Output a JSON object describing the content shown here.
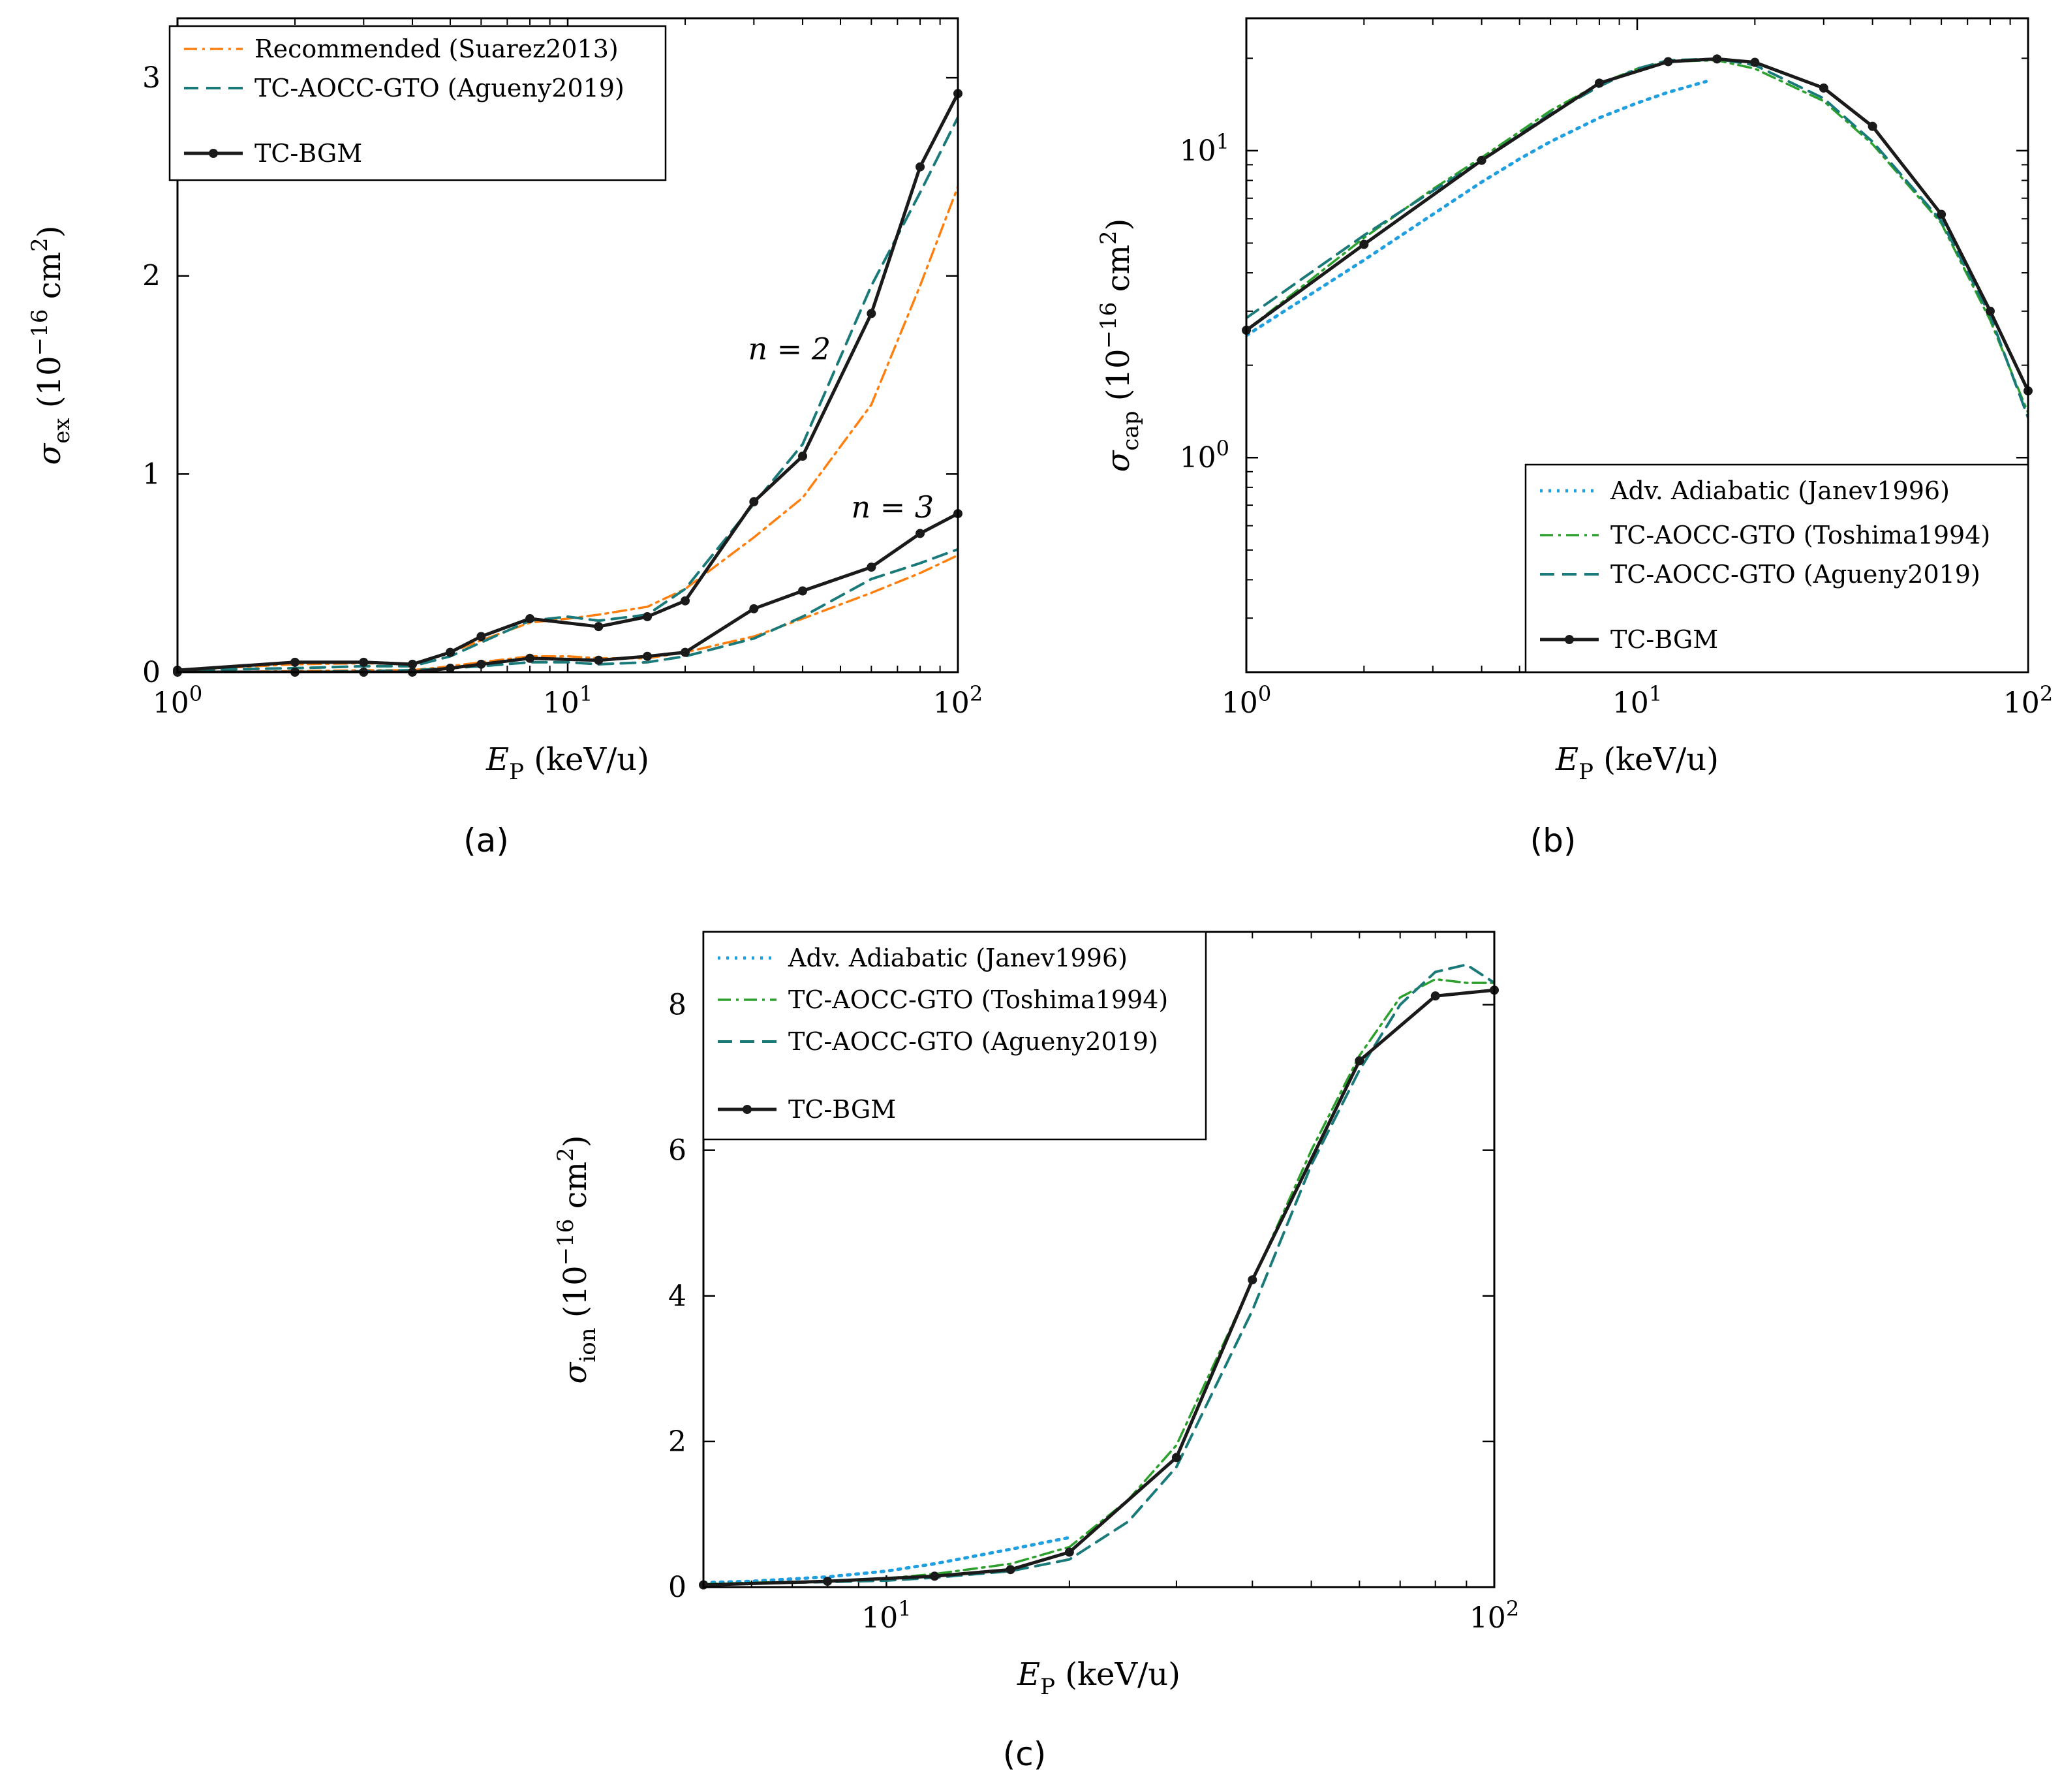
{
  "chart_data": [
    {
      "id": "a",
      "panel_label": "(a)",
      "type": "line",
      "xscale": "log",
      "yscale": "linear",
      "xlim": [
        1,
        100
      ],
      "ylim": [
        0,
        3.3
      ],
      "xlabel": "E_P (keV/u)",
      "ylabel": "σ_ex (10^−16 cm^2)",
      "xticks": [
        {
          "value": 1,
          "label": "10^0"
        },
        {
          "value": 10,
          "label": "10^1"
        },
        {
          "value": 100,
          "label": "10^2"
        }
      ],
      "yticks": [
        {
          "value": 0,
          "label": "0"
        },
        {
          "value": 1,
          "label": "1"
        },
        {
          "value": 2,
          "label": "2"
        },
        {
          "value": 3,
          "label": "3"
        }
      ],
      "legend_position": "top-left",
      "legend": [
        {
          "label": "Recommended (Suarez2013)",
          "style": "dashdot",
          "color": "#ff7f0e"
        },
        {
          "label": "TC-AOCC-GTO (Agueny2019)",
          "style": "dashed",
          "color": "#1a7a7a"
        },
        {
          "label": "TC-BGM",
          "style": "solid-marker",
          "color": "#1a1a1a"
        }
      ],
      "annotations": [
        {
          "text": "n = 2",
          "x": 37,
          "y": 1.58
        },
        {
          "text": "n = 3",
          "x": 68,
          "y": 0.78
        }
      ],
      "series": [
        {
          "name": "Recommended (Suarez2013) n=2",
          "style": "dashdot",
          "color": "#ff7f0e",
          "x": [
            1,
            2,
            3,
            4,
            5,
            6,
            8,
            10,
            12,
            16,
            20,
            30,
            40,
            60,
            80,
            100
          ],
          "y": [
            0.01,
            0.04,
            0.045,
            0.04,
            0.1,
            0.16,
            0.25,
            0.27,
            0.29,
            0.33,
            0.42,
            0.68,
            0.88,
            1.35,
            1.95,
            2.45
          ]
        },
        {
          "name": "Recommended (Suarez2013) n=3",
          "style": "dashdot",
          "color": "#ff7f0e",
          "x": [
            1,
            2,
            3,
            4,
            5,
            6,
            8,
            10,
            12,
            16,
            20,
            30,
            40,
            60,
            80,
            100
          ],
          "y": [
            0.0,
            0.005,
            0.01,
            0.01,
            0.03,
            0.05,
            0.08,
            0.08,
            0.07,
            0.07,
            0.1,
            0.18,
            0.27,
            0.4,
            0.5,
            0.59
          ]
        },
        {
          "name": "TC-AOCC-GTO (Agueny2019) n=2",
          "style": "dashed",
          "color": "#1a7a7a",
          "x": [
            1,
            2,
            3,
            4,
            5,
            6,
            8,
            10,
            12,
            16,
            20,
            30,
            40,
            60,
            80,
            100
          ],
          "y": [
            0.01,
            0.02,
            0.03,
            0.03,
            0.08,
            0.15,
            0.26,
            0.28,
            0.26,
            0.29,
            0.42,
            0.85,
            1.15,
            1.95,
            2.42,
            2.8
          ]
        },
        {
          "name": "TC-AOCC-GTO (Agueny2019) n=3",
          "style": "dashed",
          "color": "#1a7a7a",
          "x": [
            1,
            2,
            3,
            4,
            5,
            6,
            8,
            10,
            12,
            16,
            20,
            30,
            40,
            60,
            80,
            100
          ],
          "y": [
            0.0,
            0.0,
            0.005,
            0.01,
            0.02,
            0.03,
            0.05,
            0.05,
            0.04,
            0.05,
            0.08,
            0.17,
            0.28,
            0.47,
            0.55,
            0.62
          ]
        },
        {
          "name": "TC-BGM n=2",
          "style": "solid-marker",
          "color": "#1a1a1a",
          "x": [
            1,
            2,
            3,
            4,
            5,
            6,
            8,
            12,
            16,
            20,
            30,
            40,
            60,
            80,
            100
          ],
          "y": [
            0.01,
            0.05,
            0.05,
            0.04,
            0.1,
            0.18,
            0.27,
            0.23,
            0.28,
            0.36,
            0.86,
            1.09,
            1.81,
            2.55,
            2.92
          ]
        },
        {
          "name": "TC-BGM n=3",
          "style": "solid-marker",
          "color": "#1a1a1a",
          "x": [
            1,
            2,
            3,
            4,
            5,
            6,
            8,
            12,
            16,
            20,
            30,
            40,
            60,
            80,
            100
          ],
          "y": [
            0.0,
            0.0,
            0.0,
            0.0,
            0.02,
            0.04,
            0.07,
            0.06,
            0.08,
            0.1,
            0.32,
            0.41,
            0.53,
            0.7,
            0.8
          ]
        }
      ]
    },
    {
      "id": "b",
      "panel_label": "(b)",
      "type": "line",
      "xscale": "log",
      "yscale": "log",
      "xlim": [
        1,
        100
      ],
      "ylim": [
        0.2,
        27
      ],
      "xlabel": "E_P (keV/u)",
      "ylabel": "σ_cap (10^−16 cm^2)",
      "xticks": [
        {
          "value": 1,
          "label": "10^0"
        },
        {
          "value": 10,
          "label": "10^1"
        },
        {
          "value": 100,
          "label": "10^2"
        }
      ],
      "yticks": [
        {
          "value": 1,
          "label": "10^0"
        },
        {
          "value": 10,
          "label": "10^1"
        }
      ],
      "legend_position": "bottom-right",
      "legend": [
        {
          "label": "Adv. Adiabatic (Janev1996)",
          "style": "dotted",
          "color": "#1f9fe0"
        },
        {
          "label": "TC-AOCC-GTO (Toshima1994)",
          "style": "dashdot",
          "color": "#2ca02c"
        },
        {
          "label": "TC-AOCC-GTO (Agueny2019)",
          "style": "dashed",
          "color": "#1a7a7a"
        },
        {
          "label": "TC-BGM",
          "style": "solid-marker",
          "color": "#1a1a1a"
        }
      ],
      "series": [
        {
          "name": "Adv. Adiabatic (Janev1996)",
          "style": "dotted",
          "color": "#1f9fe0",
          "x": [
            1,
            2,
            3,
            4,
            5,
            6,
            8,
            10,
            12,
            15
          ],
          "y": [
            2.5,
            4.4,
            6.2,
            7.9,
            9.4,
            10.7,
            12.8,
            14.3,
            15.5,
            16.8
          ]
        },
        {
          "name": "TC-AOCC-GTO (Toshima1994)",
          "style": "dashdot",
          "color": "#2ca02c",
          "x": [
            1,
            2,
            3,
            4,
            6,
            8,
            10,
            12,
            16,
            20,
            30,
            40,
            60,
            80,
            100
          ],
          "y": [
            2.6,
            5.2,
            7.5,
            9.5,
            13.5,
            16.5,
            18.5,
            19.5,
            19.7,
            18.5,
            14.5,
            10.5,
            5.8,
            2.8,
            1.4
          ]
        },
        {
          "name": "TC-AOCC-GTO (Agueny2019)",
          "style": "dashed",
          "color": "#1a7a7a",
          "x": [
            1,
            2,
            3,
            4,
            6,
            8,
            10,
            12,
            16,
            20,
            30,
            40,
            60,
            80,
            100
          ],
          "y": [
            2.85,
            5.3,
            7.4,
            9.3,
            13.2,
            16.2,
            18.5,
            19.7,
            19.9,
            19.0,
            14.8,
            10.7,
            5.9,
            2.9,
            1.35
          ]
        },
        {
          "name": "TC-BGM",
          "style": "solid-marker",
          "color": "#1a1a1a",
          "x": [
            1,
            2,
            4,
            8,
            12,
            16,
            20,
            30,
            40,
            60,
            80,
            100
          ],
          "y": [
            2.6,
            4.95,
            9.3,
            16.6,
            19.5,
            19.9,
            19.4,
            16.0,
            12.0,
            6.2,
            3.0,
            1.65
          ]
        }
      ]
    },
    {
      "id": "c",
      "panel_label": "(c)",
      "type": "line",
      "xscale": "log",
      "yscale": "linear",
      "xlim": [
        5,
        100
      ],
      "ylim": [
        0,
        9
      ],
      "xlabel": "E_P (keV/u)",
      "ylabel": "σ_ion (10^−16 cm^2)",
      "xticks": [
        {
          "value": 10,
          "label": "10^1"
        },
        {
          "value": 100,
          "label": "10^2"
        }
      ],
      "yticks": [
        {
          "value": 0,
          "label": "0"
        },
        {
          "value": 2,
          "label": "2"
        },
        {
          "value": 4,
          "label": "4"
        },
        {
          "value": 6,
          "label": "6"
        },
        {
          "value": 8,
          "label": "8"
        }
      ],
      "legend_position": "top-left",
      "legend": [
        {
          "label": "Adv. Adiabatic (Janev1996)",
          "style": "dotted",
          "color": "#1f9fe0"
        },
        {
          "label": "TC-AOCC-GTO (Toshima1994)",
          "style": "dashdot",
          "color": "#2ca02c"
        },
        {
          "label": "TC-AOCC-GTO (Agueny2019)",
          "style": "dashed",
          "color": "#1a7a7a"
        },
        {
          "label": "TC-BGM",
          "style": "solid-marker",
          "color": "#1a1a1a"
        }
      ],
      "series": [
        {
          "name": "Adv. Adiabatic (Janev1996)",
          "style": "dotted",
          "color": "#1f9fe0",
          "x": [
            5,
            6,
            8,
            10,
            12,
            16,
            20
          ],
          "y": [
            0.06,
            0.08,
            0.14,
            0.22,
            0.32,
            0.52,
            0.68
          ]
        },
        {
          "name": "TC-AOCC-GTO (Toshima1994)",
          "style": "dashdot",
          "color": "#2ca02c",
          "x": [
            5,
            6,
            8,
            10,
            12,
            16,
            20,
            25,
            30,
            40,
            50,
            60,
            70,
            80,
            90,
            100
          ],
          "y": [
            0.04,
            0.06,
            0.08,
            0.12,
            0.18,
            0.32,
            0.55,
            1.2,
            1.95,
            4.2,
            6.0,
            7.3,
            8.1,
            8.35,
            8.3,
            8.3
          ]
        },
        {
          "name": "TC-AOCC-GTO (Agueny2019)",
          "style": "dashed",
          "color": "#1a7a7a",
          "x": [
            5,
            6,
            8,
            10,
            12,
            16,
            20,
            25,
            30,
            40,
            50,
            60,
            70,
            80,
            90,
            100
          ],
          "y": [
            0.03,
            0.05,
            0.07,
            0.09,
            0.13,
            0.22,
            0.38,
            0.9,
            1.65,
            3.8,
            5.8,
            7.1,
            8.0,
            8.45,
            8.55,
            8.3
          ]
        },
        {
          "name": "TC-BGM",
          "style": "solid-marker",
          "color": "#1a1a1a",
          "x": [
            5,
            8,
            12,
            16,
            20,
            30,
            40,
            60,
            80,
            100
          ],
          "y": [
            0.03,
            0.08,
            0.15,
            0.24,
            0.48,
            1.78,
            4.22,
            7.23,
            8.12,
            8.2
          ]
        }
      ]
    }
  ]
}
